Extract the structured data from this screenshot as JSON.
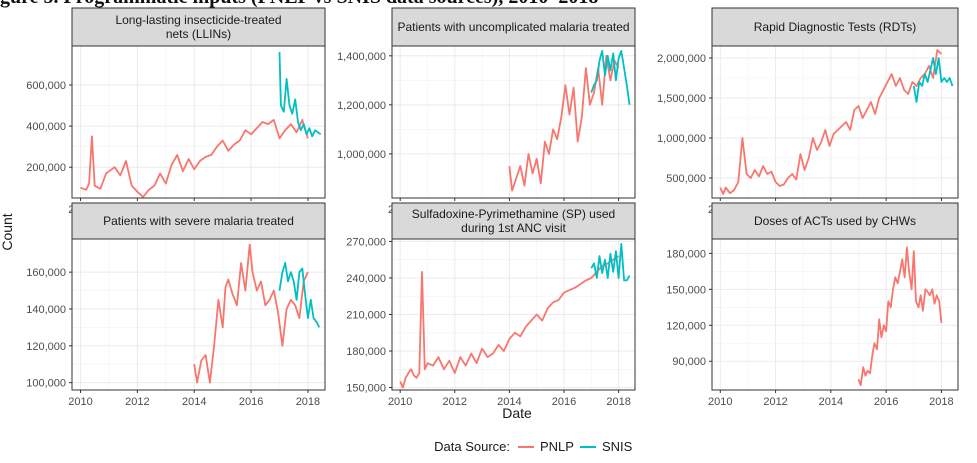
{
  "figure_caption_fragment": "gure 5. Programmatic inputs (PNLP vs SNIS data sources), 2010–2018",
  "y_axis_title": "Count",
  "x_axis_title": "Date",
  "legend": {
    "title": "Data Source:",
    "items": [
      "PNLP",
      "SNIS"
    ]
  },
  "colors": {
    "PNLP": "#F8766D",
    "SNIS": "#00BFC4",
    "panel_bg": "#FFFFFF",
    "grid": "#EBEBEB",
    "strip_bg": "#D9D9D9"
  },
  "chart_data": [
    {
      "type": "line",
      "title": "Long-lasting insecticide-treated nets (LLINs)",
      "title_lines": [
        "Long-lasting insecticide-treated",
        "nets (LLINs)"
      ],
      "xlim": [
        2009.7,
        2018.6
      ],
      "ylim": [
        50000,
        790000
      ],
      "y_ticks": [
        200000,
        400000,
        600000
      ],
      "y_tick_labels": [
        "200,000",
        "400,000",
        "600,000"
      ],
      "x_ticks": [
        2010,
        2012,
        2014,
        2016,
        2018
      ],
      "x_tick_labels": [
        "2010",
        "2012",
        "2014",
        "2016",
        "2018"
      ],
      "show_x_labels": true,
      "series": [
        {
          "name": "PNLP",
          "x": [
            2010.0,
            2010.2,
            2010.3,
            2010.4,
            2010.5,
            2010.7,
            2010.9,
            2011.0,
            2011.2,
            2011.4,
            2011.6,
            2011.8,
            2012.0,
            2012.2,
            2012.4,
            2012.6,
            2012.8,
            2013.0,
            2013.2,
            2013.4,
            2013.6,
            2013.8,
            2014.0,
            2014.2,
            2014.4,
            2014.6,
            2014.8,
            2015.0,
            2015.2,
            2015.4,
            2015.6,
            2015.8,
            2016.0,
            2016.2,
            2016.4,
            2016.6,
            2016.8,
            2017.0,
            2017.2,
            2017.4,
            2017.6,
            2017.8,
            2018.0
          ],
          "y": [
            100000,
            90000,
            120000,
            350000,
            110000,
            95000,
            170000,
            180000,
            200000,
            160000,
            230000,
            110000,
            80000,
            55000,
            90000,
            110000,
            170000,
            120000,
            210000,
            260000,
            180000,
            240000,
            190000,
            230000,
            250000,
            260000,
            300000,
            330000,
            280000,
            310000,
            330000,
            380000,
            360000,
            390000,
            420000,
            410000,
            430000,
            340000,
            380000,
            410000,
            370000,
            430000,
            340000
          ]
        },
        {
          "name": "SNIS",
          "x": [
            2017.0,
            2017.05,
            2017.15,
            2017.25,
            2017.35,
            2017.45,
            2017.55,
            2017.65,
            2017.75,
            2017.85,
            2017.95,
            2018.05,
            2018.15,
            2018.25,
            2018.35,
            2018.45
          ],
          "y": [
            760000,
            500000,
            470000,
            630000,
            500000,
            460000,
            530000,
            420000,
            380000,
            410000,
            360000,
            390000,
            350000,
            380000,
            370000,
            360000
          ]
        }
      ]
    },
    {
      "type": "line",
      "title": "Patients with uncomplicated malaria treated",
      "title_lines": [
        "Patients with uncomplicated malaria treated"
      ],
      "xlim": [
        2009.7,
        2018.6
      ],
      "ylim": [
        820000,
        1440000
      ],
      "y_ticks": [
        1000000,
        1200000,
        1400000
      ],
      "y_tick_labels": [
        "1,000,000",
        "1,200,000",
        "1,400,000"
      ],
      "x_ticks": [
        2010,
        2012,
        2014,
        2016,
        2018
      ],
      "x_tick_labels": [
        "2010",
        "2012",
        "2014",
        "2016",
        "2018"
      ],
      "show_x_labels": true,
      "series": [
        {
          "name": "PNLP",
          "x": [
            2014.0,
            2014.1,
            2014.25,
            2014.4,
            2014.55,
            2014.7,
            2014.85,
            2015.0,
            2015.15,
            2015.3,
            2015.45,
            2015.6,
            2015.75,
            2015.9,
            2016.05,
            2016.2,
            2016.35,
            2016.5,
            2016.65,
            2016.8,
            2016.95,
            2017.1,
            2017.25,
            2017.4,
            2017.55,
            2017.7,
            2017.85,
            2018.0
          ],
          "y": [
            950000,
            850000,
            900000,
            950000,
            870000,
            1000000,
            920000,
            980000,
            880000,
            1050000,
            1000000,
            1100000,
            1060000,
            1150000,
            1280000,
            1160000,
            1270000,
            1050000,
            1150000,
            1350000,
            1200000,
            1250000,
            1350000,
            1200000,
            1400000,
            1300000,
            1380000,
            1350000
          ]
        },
        {
          "name": "SNIS",
          "x": [
            2017.0,
            2017.1,
            2017.2,
            2017.3,
            2017.4,
            2017.5,
            2017.6,
            2017.7,
            2017.8,
            2017.9,
            2018.0,
            2018.1,
            2018.2,
            2018.3,
            2018.4
          ],
          "y": [
            1250000,
            1280000,
            1300000,
            1380000,
            1420000,
            1320000,
            1400000,
            1340000,
            1410000,
            1300000,
            1390000,
            1420000,
            1350000,
            1280000,
            1200000
          ]
        }
      ]
    },
    {
      "type": "line",
      "title": "Rapid Diagnostic Tests (RDTs)",
      "title_lines": [
        "Rapid Diagnostic Tests (RDTs)"
      ],
      "xlim": [
        2009.7,
        2018.6
      ],
      "ylim": [
        250000,
        2150000
      ],
      "y_ticks": [
        500000,
        1000000,
        1500000,
        2000000
      ],
      "y_tick_labels": [
        "500,000",
        "1,000,000",
        "1,500,000",
        "2,000,000"
      ],
      "x_ticks": [
        2010,
        2012,
        2014,
        2016,
        2018
      ],
      "x_tick_labels": [
        "2010",
        "2012",
        "2014",
        "2016",
        "2018"
      ],
      "show_x_labels": true,
      "series": [
        {
          "name": "PNLP",
          "x": [
            2010.0,
            2010.1,
            2010.2,
            2010.35,
            2010.5,
            2010.65,
            2010.8,
            2010.95,
            2011.1,
            2011.25,
            2011.4,
            2011.55,
            2011.7,
            2011.85,
            2012.0,
            2012.15,
            2012.3,
            2012.45,
            2012.6,
            2012.75,
            2012.9,
            2013.05,
            2013.2,
            2013.35,
            2013.5,
            2013.65,
            2013.8,
            2013.95,
            2014.1,
            2014.25,
            2014.4,
            2014.55,
            2014.7,
            2014.85,
            2015.0,
            2015.15,
            2015.3,
            2015.45,
            2015.6,
            2015.75,
            2015.9,
            2016.05,
            2016.2,
            2016.35,
            2016.5,
            2016.65,
            2016.8,
            2016.95,
            2017.1,
            2017.25,
            2017.4,
            2017.55,
            2017.7,
            2017.85,
            2018.0
          ],
          "y": [
            380000,
            300000,
            380000,
            310000,
            350000,
            450000,
            1000000,
            550000,
            500000,
            600000,
            520000,
            650000,
            550000,
            580000,
            450000,
            400000,
            420000,
            500000,
            550000,
            480000,
            800000,
            600000,
            750000,
            1000000,
            850000,
            950000,
            1100000,
            900000,
            1050000,
            1100000,
            1150000,
            1200000,
            1100000,
            1350000,
            1400000,
            1250000,
            1350000,
            1450000,
            1300000,
            1500000,
            1600000,
            1700000,
            1800000,
            1650000,
            1750000,
            1600000,
            1550000,
            1700000,
            1650000,
            1750000,
            1800000,
            1900000,
            1750000,
            2100000,
            2050000
          ]
        },
        {
          "name": "SNIS",
          "x": [
            2017.0,
            2017.1,
            2017.2,
            2017.3,
            2017.4,
            2017.5,
            2017.6,
            2017.7,
            2017.8,
            2017.9,
            2018.0,
            2018.1,
            2018.2,
            2018.3,
            2018.4
          ],
          "y": [
            1650000,
            1450000,
            1700000,
            1650000,
            1800000,
            1700000,
            1850000,
            2000000,
            1800000,
            2000000,
            1700000,
            1750000,
            1700000,
            1750000,
            1650000
          ]
        }
      ]
    },
    {
      "type": "line",
      "title": "Patients with severe malaria treated",
      "title_lines": [
        "Patients with severe malaria treated"
      ],
      "xlim": [
        2009.7,
        2018.6
      ],
      "ylim": [
        96000,
        178000
      ],
      "y_ticks": [
        100000,
        120000,
        140000,
        160000
      ],
      "y_tick_labels": [
        "100,000",
        "120,000",
        "140,000",
        "160,000"
      ],
      "x_ticks": [
        2010,
        2012,
        2014,
        2016,
        2018
      ],
      "x_tick_labels": [
        "2010",
        "2012",
        "2014",
        "2016",
        "2018"
      ],
      "show_x_labels": true,
      "series": [
        {
          "name": "PNLP",
          "x": [
            2014.0,
            2014.1,
            2014.25,
            2014.4,
            2014.55,
            2014.7,
            2014.85,
            2015.0,
            2015.1,
            2015.2,
            2015.35,
            2015.5,
            2015.65,
            2015.8,
            2015.95,
            2016.05,
            2016.2,
            2016.35,
            2016.5,
            2016.65,
            2016.8,
            2016.95,
            2017.1,
            2017.25,
            2017.4,
            2017.55,
            2017.7,
            2017.85,
            2018.0
          ],
          "y": [
            110000,
            100000,
            112000,
            115000,
            100000,
            120000,
            145000,
            130000,
            152000,
            156000,
            148000,
            142000,
            165000,
            150000,
            175000,
            160000,
            150000,
            155000,
            142000,
            145000,
            150000,
            138000,
            120000,
            140000,
            145000,
            142000,
            135000,
            155000,
            160000
          ]
        },
        {
          "name": "SNIS",
          "x": [
            2017.0,
            2017.1,
            2017.2,
            2017.3,
            2017.4,
            2017.5,
            2017.6,
            2017.7,
            2017.8,
            2017.9,
            2018.0,
            2018.1,
            2018.2,
            2018.3,
            2018.4
          ],
          "y": [
            150000,
            160000,
            165000,
            155000,
            160000,
            155000,
            145000,
            160000,
            162000,
            148000,
            135000,
            145000,
            135000,
            133000,
            130000
          ]
        }
      ]
    },
    {
      "type": "line",
      "title": "Sulfadoxine-Pyrimethamine (SP) used during 1st ANC visit",
      "title_lines": [
        "Sulfadoxine-Pyrimethamine (SP) used",
        "during 1st ANC visit"
      ],
      "xlim": [
        2009.7,
        2018.6
      ],
      "ylim": [
        148000,
        272000
      ],
      "y_ticks": [
        150000,
        180000,
        210000,
        240000,
        270000
      ],
      "y_tick_labels": [
        "150,000",
        "180,000",
        "210,000",
        "240,000",
        "270,000"
      ],
      "x_ticks": [
        2010,
        2012,
        2014,
        2016,
        2018
      ],
      "x_tick_labels": [
        "2010",
        "2012",
        "2014",
        "2016",
        "2018"
      ],
      "show_x_labels": true,
      "series": [
        {
          "name": "PNLP",
          "x": [
            2010.0,
            2010.1,
            2010.2,
            2010.3,
            2010.4,
            2010.5,
            2010.6,
            2010.7,
            2010.8,
            2010.9,
            2011.0,
            2011.2,
            2011.4,
            2011.6,
            2011.8,
            2012.0,
            2012.2,
            2012.4,
            2012.6,
            2012.8,
            2013.0,
            2013.2,
            2013.4,
            2013.6,
            2013.8,
            2014.0,
            2014.2,
            2014.4,
            2014.6,
            2014.8,
            2015.0,
            2015.2,
            2015.4,
            2015.6,
            2015.8,
            2016.0,
            2016.2,
            2016.4,
            2016.6,
            2016.8,
            2017.0,
            2017.2,
            2017.4,
            2017.6,
            2017.8,
            2018.0
          ],
          "y": [
            155000,
            150000,
            158000,
            162000,
            165000,
            160000,
            158000,
            162000,
            245000,
            165000,
            170000,
            168000,
            175000,
            165000,
            172000,
            162000,
            175000,
            168000,
            178000,
            170000,
            182000,
            175000,
            178000,
            185000,
            180000,
            190000,
            195000,
            192000,
            200000,
            205000,
            210000,
            205000,
            215000,
            220000,
            222000,
            228000,
            230000,
            232000,
            235000,
            238000,
            240000,
            245000,
            250000,
            252000,
            255000,
            258000
          ]
        },
        {
          "name": "SNIS",
          "x": [
            2017.0,
            2017.1,
            2017.2,
            2017.3,
            2017.4,
            2017.5,
            2017.6,
            2017.7,
            2017.8,
            2017.9,
            2018.0,
            2018.1,
            2018.2,
            2018.3,
            2018.4
          ],
          "y": [
            248000,
            252000,
            240000,
            258000,
            244000,
            255000,
            240000,
            260000,
            245000,
            262000,
            240000,
            268000,
            238000,
            238000,
            242000
          ]
        }
      ]
    },
    {
      "type": "line",
      "title": "Doses of ACTs used by CHWs",
      "title_lines": [
        "Doses of ACTs used by CHWs"
      ],
      "xlim": [
        2009.7,
        2018.6
      ],
      "ylim": [
        66000,
        192000
      ],
      "y_ticks": [
        90000,
        120000,
        150000,
        180000
      ],
      "y_tick_labels": [
        "90,000",
        "120,000",
        "150,000",
        "180,000"
      ],
      "x_ticks": [
        2010,
        2012,
        2014,
        2016,
        2018
      ],
      "x_tick_labels": [
        "2010",
        "2012",
        "2014",
        "2016",
        "2018"
      ],
      "show_x_labels": true,
      "series": [
        {
          "name": "PNLP",
          "x": [
            2015.0,
            2015.08,
            2015.17,
            2015.25,
            2015.33,
            2015.42,
            2015.5,
            2015.58,
            2015.67,
            2015.75,
            2015.83,
            2015.92,
            2016.0,
            2016.08,
            2016.17,
            2016.25,
            2016.33,
            2016.42,
            2016.5,
            2016.58,
            2016.67,
            2016.75,
            2016.83,
            2016.92,
            2017.0,
            2017.08,
            2017.17,
            2017.25,
            2017.33,
            2017.42,
            2017.5,
            2017.58,
            2017.67,
            2017.75,
            2017.83,
            2017.92,
            2018.0
          ],
          "y": [
            75000,
            70000,
            85000,
            78000,
            82000,
            80000,
            95000,
            105000,
            100000,
            125000,
            110000,
            120000,
            115000,
            140000,
            135000,
            150000,
            160000,
            155000,
            165000,
            175000,
            160000,
            185000,
            165000,
            150000,
            182000,
            140000,
            135000,
            145000,
            132000,
            150000,
            148000,
            145000,
            150000,
            138000,
            145000,
            140000,
            122000
          ]
        }
      ]
    }
  ]
}
